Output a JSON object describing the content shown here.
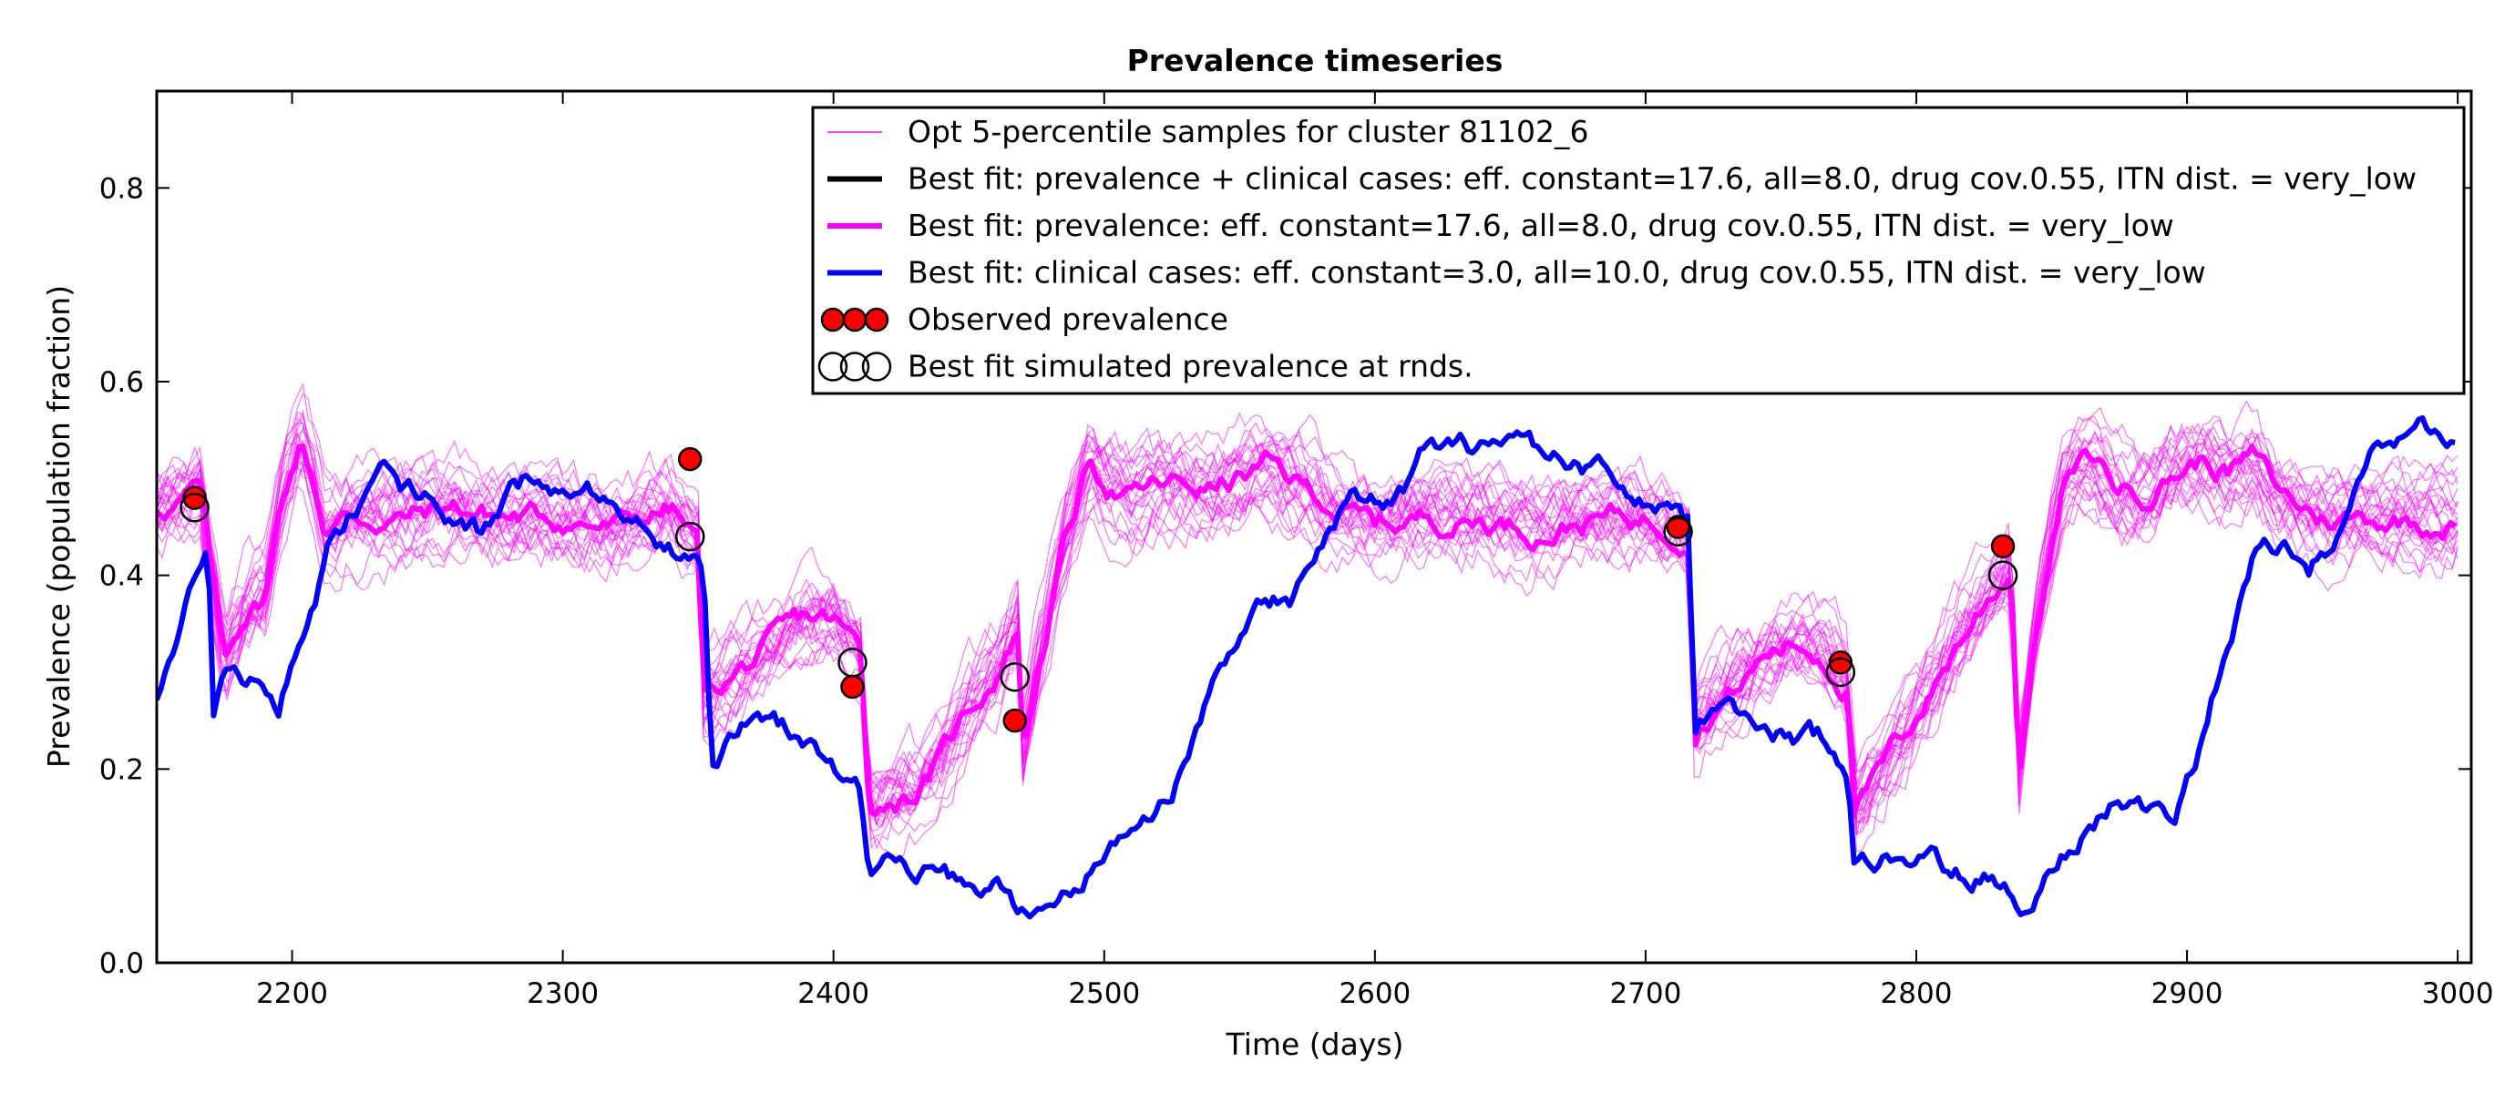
{
  "chart_data": {
    "type": "line",
    "title": "Prevalence timeseries",
    "xlabel": "Time (days)",
    "ylabel": "Prevalence (population fraction)",
    "xlim": [
      2150,
      3005
    ],
    "ylim": [
      0.0,
      0.9
    ],
    "x_ticks": [
      2200,
      2300,
      2400,
      2500,
      2600,
      2700,
      2800,
      2900,
      3000
    ],
    "x_tick_labels": [
      "2200",
      "2300",
      "2400",
      "2500",
      "2600",
      "2700",
      "2800",
      "2900",
      "3000"
    ],
    "y_ticks": [
      0.0,
      0.2,
      0.4,
      0.6,
      0.8
    ],
    "y_tick_labels": [
      "0.0",
      "0.2",
      "0.4",
      "0.6",
      "0.8"
    ],
    "grid": false,
    "legend_position": "top-right",
    "legend": [
      {
        "label": "Opt 5-percentile samples for cluster 81102_6",
        "kind": "thin-line",
        "color": "#ff00ff"
      },
      {
        "label": "Best fit: prevalence + clinical cases: eff. constant=17.6, all=8.0, drug cov.0.55, ITN dist. = very_low",
        "kind": "line",
        "color": "#000000"
      },
      {
        "label": "Best fit: prevalence: eff. constant=17.6, all=8.0, drug cov.0.55, ITN dist. = very_low",
        "kind": "line",
        "color": "#ff00ff"
      },
      {
        "label": "Best fit: clinical cases: eff. constant=3.0, all=10.0, drug cov.0.55, ITN dist. = very_low",
        "kind": "line",
        "color": "#0000ff"
      },
      {
        "label": "Observed prevalence",
        "kind": "filled-markers",
        "color": "#ff0000"
      },
      {
        "label": "Best fit simulated prevalence at rnds.",
        "kind": "open-markers",
        "color": "#000000"
      }
    ],
    "series": [
      {
        "name": "Best fit: prevalence: eff. constant=17.6, all=8.0, drug cov.0.55, ITN dist. = very_low",
        "color": "#ff00ff",
        "x": [
          2150,
          2160,
          2166,
          2170,
          2175,
          2182,
          2190,
          2197,
          2203,
          2208,
          2212,
          2220,
          2240,
          2260,
          2280,
          2300,
          2320,
          2340,
          2350,
          2352,
          2360,
          2370,
          2380,
          2390,
          2400,
          2410,
          2413,
          2416,
          2420,
          2430,
          2440,
          2450,
          2460,
          2468,
          2470,
          2475,
          2485,
          2495,
          2500,
          2510,
          2520,
          2540,
          2560,
          2580,
          2600,
          2620,
          2640,
          2660,
          2680,
          2700,
          2716,
          2718,
          2725,
          2735,
          2745,
          2755,
          2765,
          2775,
          2777,
          2785,
          2795,
          2805,
          2815,
          2825,
          2835,
          2838,
          2840,
          2845,
          2855,
          2865,
          2875,
          2885,
          2895,
          2905,
          2915,
          2925,
          2935,
          2950,
          2965,
          2980,
          3000
        ],
        "y": [
          0.47,
          0.48,
          0.49,
          0.4,
          0.31,
          0.36,
          0.38,
          0.49,
          0.54,
          0.5,
          0.45,
          0.46,
          0.46,
          0.47,
          0.46,
          0.46,
          0.45,
          0.47,
          0.43,
          0.27,
          0.29,
          0.31,
          0.33,
          0.35,
          0.35,
          0.32,
          0.17,
          0.16,
          0.17,
          0.18,
          0.21,
          0.26,
          0.3,
          0.35,
          0.22,
          0.3,
          0.43,
          0.52,
          0.5,
          0.48,
          0.49,
          0.49,
          0.51,
          0.48,
          0.45,
          0.46,
          0.46,
          0.45,
          0.46,
          0.46,
          0.45,
          0.25,
          0.27,
          0.29,
          0.32,
          0.33,
          0.32,
          0.29,
          0.16,
          0.19,
          0.23,
          0.28,
          0.33,
          0.37,
          0.41,
          0.2,
          0.25,
          0.36,
          0.5,
          0.52,
          0.49,
          0.49,
          0.51,
          0.52,
          0.51,
          0.52,
          0.48,
          0.46,
          0.46,
          0.46,
          0.46
        ]
      },
      {
        "name": "Best fit: clinical cases: eff. constant=3.0, all=10.0, drug cov.0.55, ITN dist. = very_low",
        "color": "#0000ff",
        "x": [
          2150,
          2158,
          2166,
          2169,
          2171,
          2175,
          2185,
          2195,
          2205,
          2215,
          2225,
          2232,
          2240,
          2250,
          2260,
          2270,
          2280,
          2290,
          2300,
          2310,
          2320,
          2330,
          2340,
          2352,
          2355,
          2370,
          2390,
          2400,
          2410,
          2413,
          2416,
          2430,
          2440,
          2450,
          2460,
          2470,
          2474,
          2480,
          2490,
          2500,
          2510,
          2520,
          2530,
          2540,
          2550,
          2560,
          2570,
          2580,
          2590,
          2600,
          2610,
          2620,
          2640,
          2660,
          2680,
          2700,
          2712,
          2716,
          2718,
          2730,
          2745,
          2760,
          2770,
          2775,
          2777,
          2790,
          2810,
          2830,
          2835,
          2838,
          2845,
          2855,
          2865,
          2875,
          2890,
          2895,
          2905,
          2915,
          2925,
          2935,
          2945,
          2960,
          2970,
          2985,
          3000
        ],
        "y": [
          0.28,
          0.33,
          0.4,
          0.42,
          0.25,
          0.29,
          0.29,
          0.27,
          0.35,
          0.44,
          0.47,
          0.52,
          0.49,
          0.48,
          0.46,
          0.44,
          0.48,
          0.5,
          0.5,
          0.49,
          0.47,
          0.46,
          0.44,
          0.41,
          0.22,
          0.25,
          0.23,
          0.19,
          0.17,
          0.09,
          0.11,
          0.1,
          0.09,
          0.07,
          0.07,
          0.05,
          0.04,
          0.06,
          0.09,
          0.11,
          0.15,
          0.17,
          0.21,
          0.28,
          0.35,
          0.38,
          0.38,
          0.42,
          0.47,
          0.47,
          0.49,
          0.53,
          0.53,
          0.52,
          0.51,
          0.49,
          0.46,
          0.45,
          0.24,
          0.27,
          0.24,
          0.23,
          0.22,
          0.19,
          0.1,
          0.12,
          0.1,
          0.09,
          0.08,
          0.06,
          0.09,
          0.12,
          0.15,
          0.17,
          0.16,
          0.15,
          0.22,
          0.34,
          0.43,
          0.43,
          0.41,
          0.45,
          0.52,
          0.55,
          0.52
        ]
      }
    ],
    "observed_prevalence": {
      "name": "Observed prevalence",
      "x": [
        2164,
        2347,
        2407,
        2467,
        2712,
        2772,
        2832
      ],
      "y": [
        0.48,
        0.52,
        0.285,
        0.25,
        0.45,
        0.31,
        0.43
      ]
    },
    "simulated_prevalence_at_rnds": {
      "name": "Best fit simulated prevalence at rnds.",
      "x": [
        2164,
        2347,
        2407,
        2467,
        2712,
        2772,
        2832
      ],
      "y": [
        0.47,
        0.44,
        0.31,
        0.295,
        0.445,
        0.3,
        0.4
      ]
    },
    "samples": {
      "name": "Opt 5-percentile samples for cluster 81102_6",
      "count": 25,
      "color": "#ff00ff"
    }
  }
}
